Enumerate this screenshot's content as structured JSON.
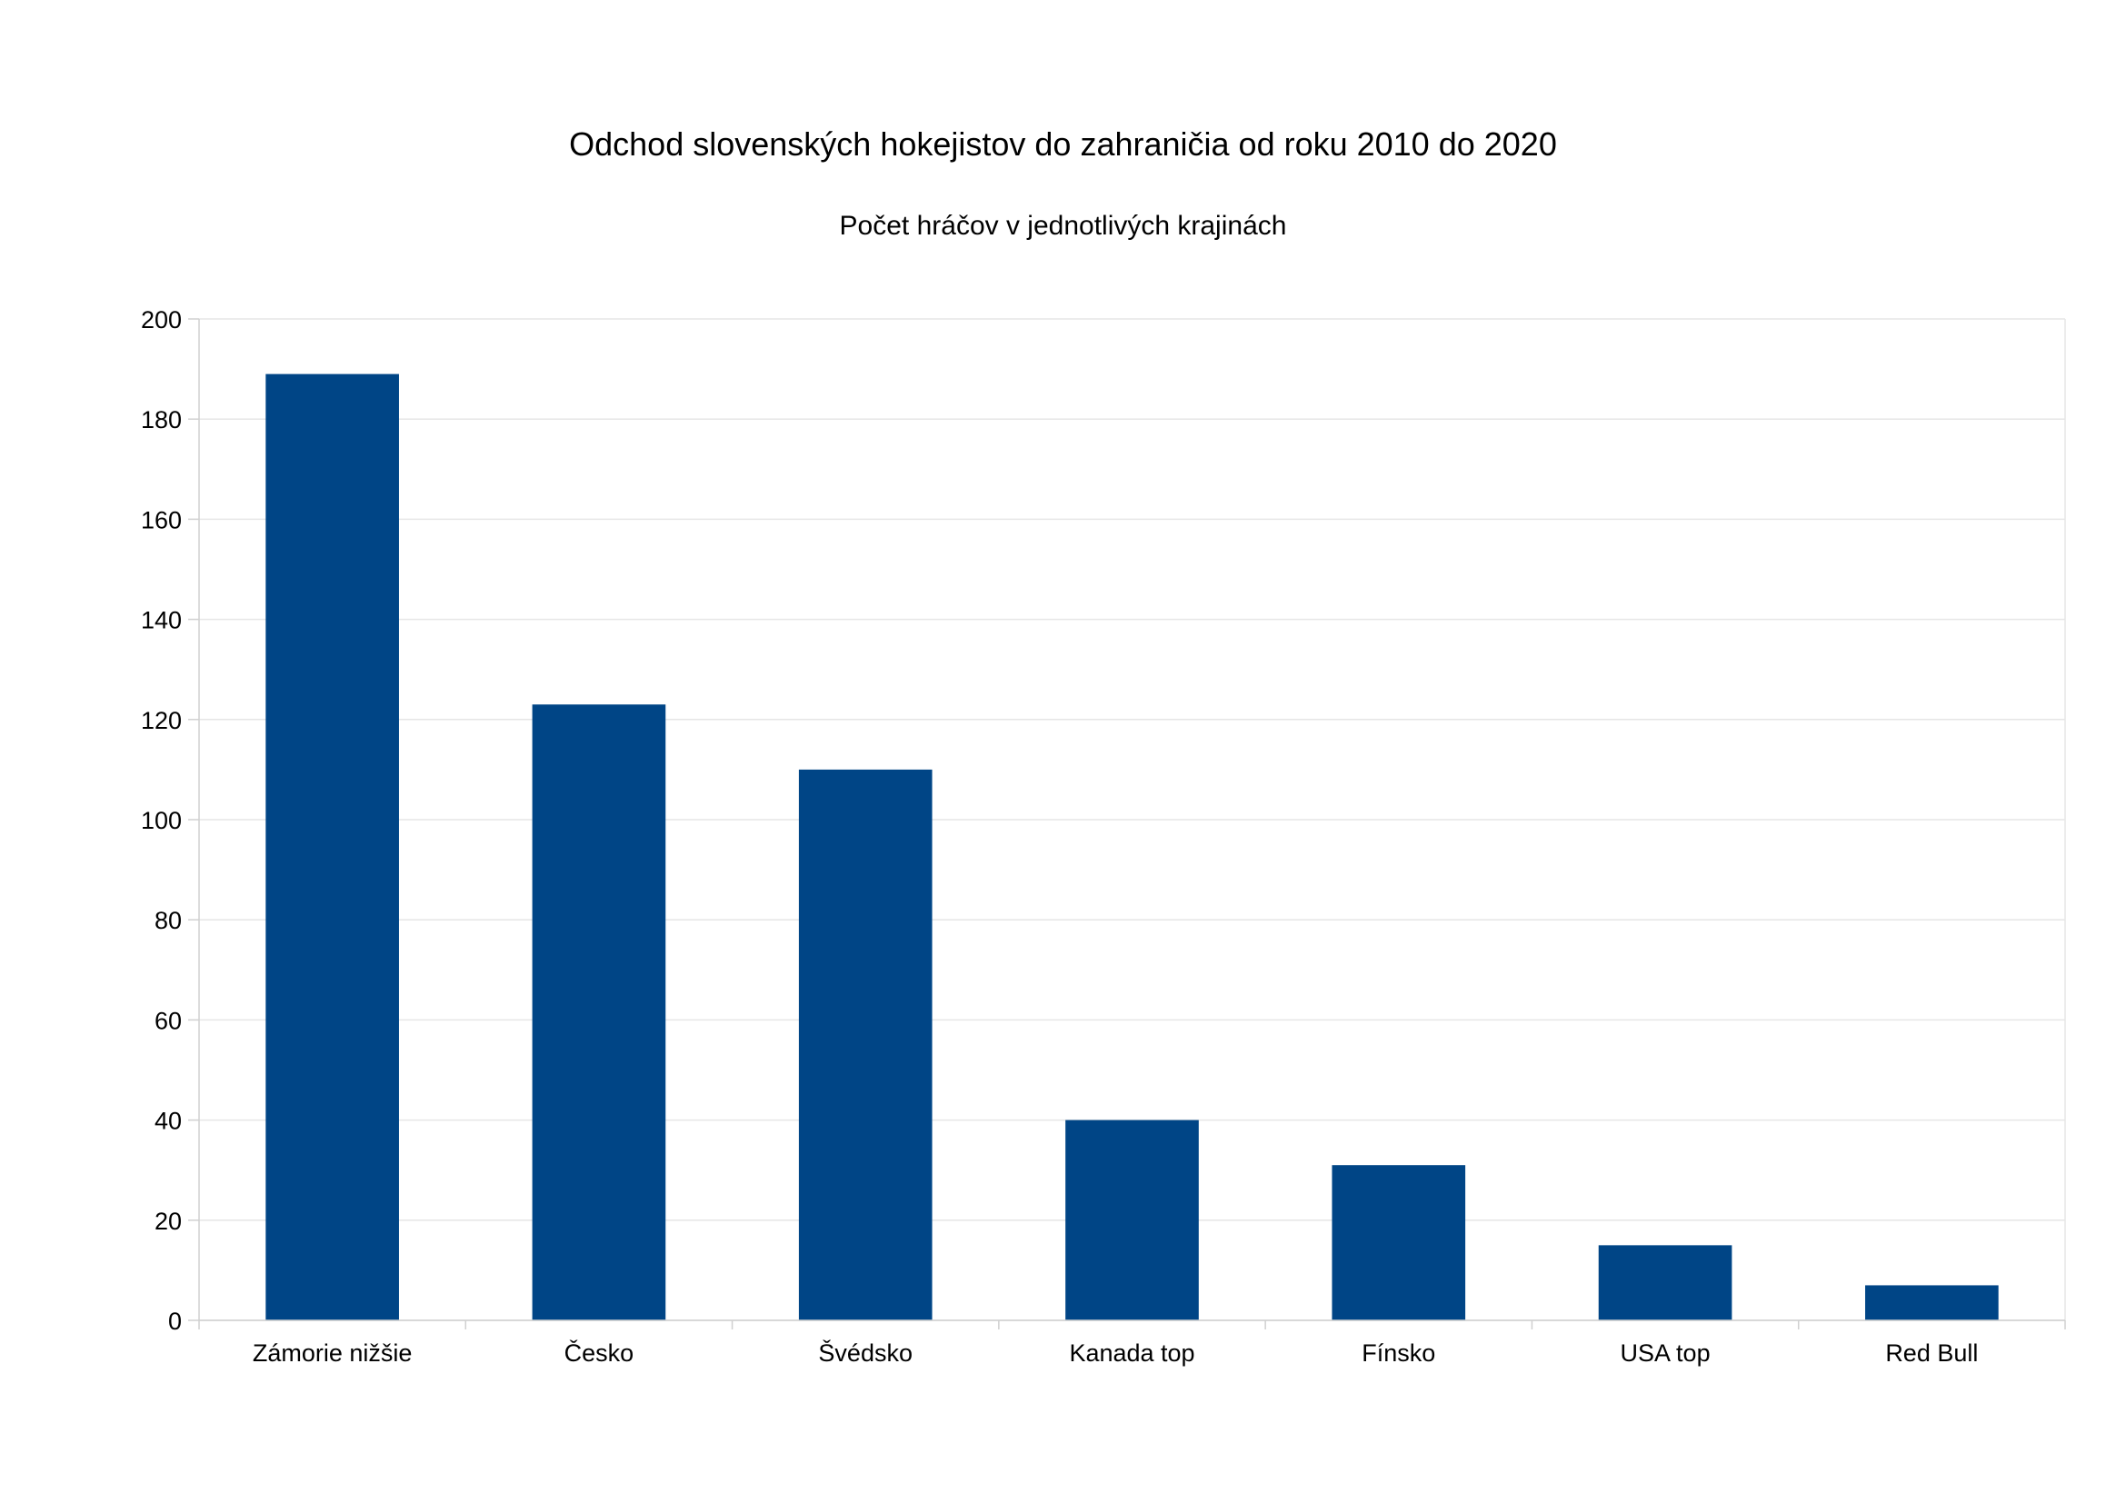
{
  "chart_data": {
    "type": "bar",
    "title": "Odchod slovenských hokejistov do zahraničia od roku 2010 do 2020",
    "subtitle": "Počet hráčov v jednotlivých krajinách",
    "categories": [
      "Zámorie nižšie",
      "Česko",
      "Švédsko",
      "Kanada top",
      "Fínsko",
      "USA top",
      "Red Bull"
    ],
    "values": [
      189,
      123,
      110,
      40,
      31,
      15,
      7
    ],
    "xlabel": "",
    "ylabel": "",
    "ylim": [
      0,
      200
    ],
    "yticks": [
      "0",
      "20",
      "40",
      "60",
      "80",
      "100",
      "120",
      "140",
      "160",
      "180",
      "200"
    ],
    "grid": true,
    "legend": "none",
    "colors": {
      "bar": "#004586",
      "grid": "#e6e6e6",
      "axis": "#d0d0d0"
    }
  }
}
